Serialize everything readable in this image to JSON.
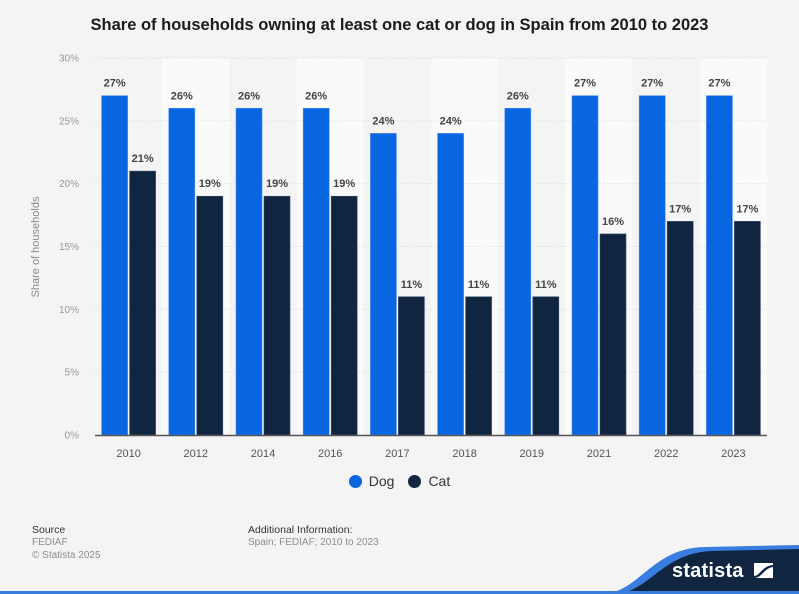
{
  "chart_data": {
    "type": "bar",
    "title": "Share of households owning at least one cat or dog in Spain from 2010 to 2023",
    "xlabel": "",
    "ylabel": "Share of households",
    "categories": [
      "2010",
      "2012",
      "2014",
      "2016",
      "2017",
      "2018",
      "2019",
      "2021",
      "2022",
      "2023"
    ],
    "series": [
      {
        "name": "Dog",
        "color": "#0866e0",
        "values": [
          27,
          26,
          26,
          26,
          24,
          24,
          26,
          27,
          27,
          27
        ]
      },
      {
        "name": "Cat",
        "color": "#10253f",
        "values": [
          21,
          19,
          19,
          19,
          11,
          11,
          11,
          16,
          17,
          17
        ]
      }
    ],
    "ylim": [
      0,
      30
    ],
    "yticks": [
      0,
      5,
      10,
      15,
      20,
      25,
      30
    ],
    "ytick_labels": [
      "0%",
      "5%",
      "10%",
      "15%",
      "20%",
      "25%",
      "30%"
    ],
    "value_suffix": "%",
    "grid": true,
    "legend_position": "bottom-center"
  },
  "footer": {
    "source_heading": "Source",
    "source_value": "FEDIAF",
    "copyright": "© Statista 2025",
    "additional_heading": "Additional Information:",
    "additional_value": "Spain; FEDIAF; 2010 to 2023"
  },
  "brand": {
    "name": "statista",
    "color_dark": "#0f2540",
    "color_accent": "#3a7de0"
  }
}
